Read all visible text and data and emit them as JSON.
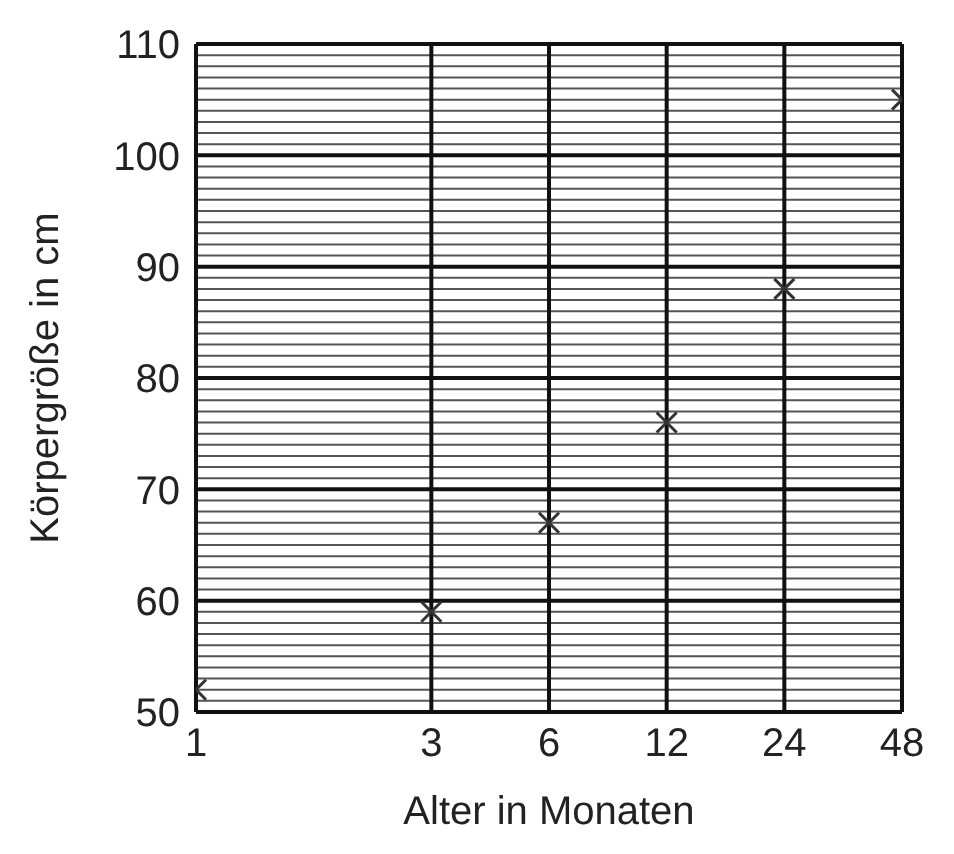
{
  "chart_data": {
    "type": "scatter",
    "xlabel": "Alter in Monaten",
    "ylabel": "Körpergröße in cm",
    "categories": [
      "1",
      null,
      "3",
      "6",
      "12",
      "24",
      "48"
    ],
    "values": [
      52,
      null,
      59,
      67,
      76,
      88,
      105
    ],
    "color": "#333333",
    "ylim": [
      50,
      110
    ],
    "yticks": [
      50,
      60,
      70,
      80,
      90,
      100,
      110
    ],
    "grid": true,
    "marker": "cross"
  }
}
